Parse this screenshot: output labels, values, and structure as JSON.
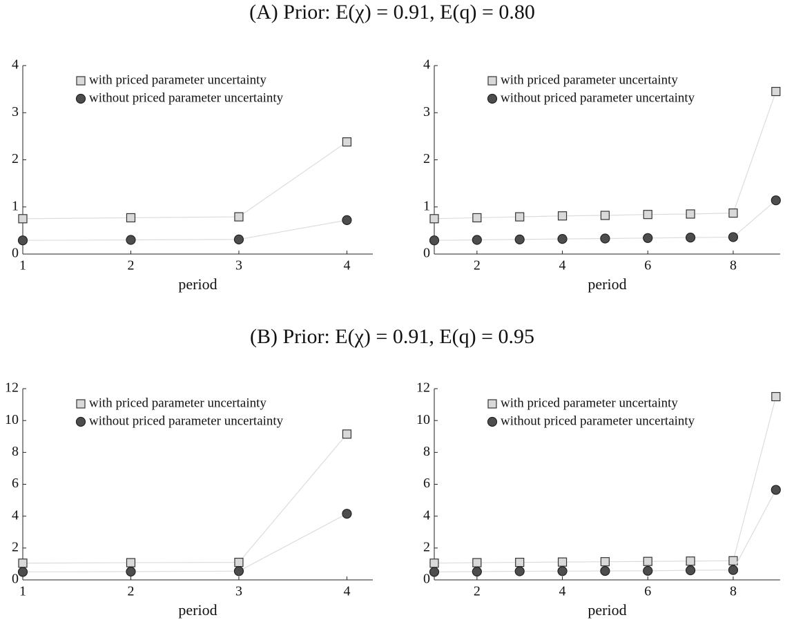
{
  "section_titles": [
    "(A) Prior: E(χ) = 0.91, E(q) = 0.80",
    "(B) Prior: E(χ) = 0.91, E(q) = 0.95"
  ],
  "chart_data": [
    {
      "type": "line",
      "xlabel": "period",
      "x": [
        1,
        2,
        3,
        4
      ],
      "xlim": [
        1,
        4.24
      ],
      "xticks": [
        1,
        2,
        3,
        4
      ],
      "ylim": [
        0,
        4
      ],
      "yticks": [
        0,
        1,
        2,
        3,
        4
      ],
      "series": [
        {
          "name": "with priced parameter uncertainty",
          "marker": "square",
          "color": "#d9d9d9",
          "values": [
            0.75,
            0.77,
            0.79,
            2.38
          ]
        },
        {
          "name": "without priced parameter uncertainty",
          "marker": "circle",
          "color": "#4d4d4d",
          "values": [
            0.29,
            0.3,
            0.31,
            0.72
          ]
        }
      ]
    },
    {
      "type": "line",
      "xlabel": "period",
      "x": [
        1,
        2,
        3,
        4,
        5,
        6,
        7,
        8,
        9
      ],
      "xlim": [
        1,
        9.1
      ],
      "xticks": [
        2,
        4,
        6,
        8
      ],
      "ylim": [
        0,
        4
      ],
      "yticks": [
        0,
        1,
        2,
        3,
        4
      ],
      "series": [
        {
          "name": "with priced parameter uncertainty",
          "marker": "square",
          "color": "#d9d9d9",
          "values": [
            0.75,
            0.77,
            0.79,
            0.81,
            0.82,
            0.84,
            0.85,
            0.87,
            3.45
          ]
        },
        {
          "name": "without priced parameter uncertainty",
          "marker": "circle",
          "color": "#4d4d4d",
          "values": [
            0.29,
            0.3,
            0.31,
            0.32,
            0.33,
            0.34,
            0.35,
            0.36,
            1.14
          ]
        }
      ]
    },
    {
      "type": "line",
      "xlabel": "period",
      "x": [
        1,
        2,
        3,
        4
      ],
      "xlim": [
        1,
        4.24
      ],
      "xticks": [
        1,
        2,
        3,
        4
      ],
      "ylim": [
        0,
        12
      ],
      "yticks": [
        0,
        2,
        4,
        6,
        8,
        10,
        12
      ],
      "series": [
        {
          "name": "with priced parameter uncertainty",
          "marker": "square",
          "color": "#d9d9d9",
          "values": [
            1.05,
            1.08,
            1.1,
            9.15
          ]
        },
        {
          "name": "without priced parameter uncertainty",
          "marker": "circle",
          "color": "#4d4d4d",
          "values": [
            0.5,
            0.52,
            0.55,
            4.15
          ]
        }
      ]
    },
    {
      "type": "line",
      "xlabel": "period",
      "x": [
        1,
        2,
        3,
        4,
        5,
        6,
        7,
        8,
        9
      ],
      "xlim": [
        1,
        9.1
      ],
      "xticks": [
        2,
        4,
        6,
        8
      ],
      "ylim": [
        0,
        12
      ],
      "yticks": [
        0,
        2,
        4,
        6,
        8,
        10,
        12
      ],
      "series": [
        {
          "name": "with priced parameter uncertainty",
          "marker": "square",
          "color": "#d9d9d9",
          "values": [
            1.05,
            1.08,
            1.1,
            1.12,
            1.14,
            1.16,
            1.18,
            1.2,
            11.5
          ]
        },
        {
          "name": "without priced parameter uncertainty",
          "marker": "circle",
          "color": "#4d4d4d",
          "values": [
            0.5,
            0.52,
            0.54,
            0.55,
            0.56,
            0.57,
            0.6,
            0.62,
            5.65
          ]
        }
      ]
    }
  ]
}
